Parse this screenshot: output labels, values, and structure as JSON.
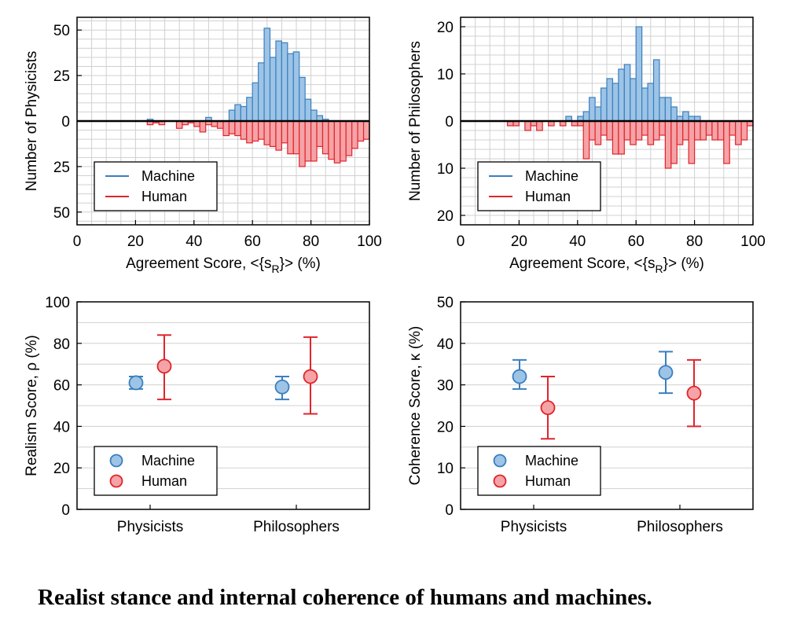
{
  "caption": "Realist stance and internal coherence of humans and machines.",
  "colors": {
    "machine_fill": "#9dc4e6",
    "machine_stroke": "#3a7fbf",
    "human_fill": "#f5a3a6",
    "human_stroke": "#e0242c",
    "grid": "#d0d0d0",
    "axis": "#000000"
  },
  "chart_data": [
    {
      "id": "hist-physicists",
      "type": "bar",
      "subtype": "mirrored-histogram",
      "xlabel": "Agreement Score, <{s_R}> (%)",
      "xlabel_main": "Agreement Score, <{s",
      "xlabel_sub": "R",
      "xlabel_end": "}> (%)",
      "ylabel": "Number of Physicists",
      "xlim": [
        0,
        100
      ],
      "xticks": [
        "0",
        "20",
        "40",
        "60",
        "80",
        "100"
      ],
      "ylim": [
        -57,
        57
      ],
      "ytick_labels": [
        "50",
        "25",
        "0",
        "25",
        "50"
      ],
      "bin_width": 2,
      "bins_start": [
        24,
        26,
        28,
        30,
        32,
        34,
        36,
        38,
        40,
        42,
        44,
        46,
        48,
        50,
        52,
        54,
        56,
        58,
        60,
        62,
        64,
        66,
        68,
        70,
        72,
        74,
        76,
        78,
        80,
        82,
        84,
        86,
        88,
        90,
        92,
        94,
        96,
        98
      ],
      "series": [
        {
          "name": "Machine",
          "direction": "up",
          "values": [
            1,
            0,
            0,
            0,
            0,
            0,
            0,
            0,
            0,
            0,
            2,
            0,
            0,
            0,
            6,
            9,
            8,
            13,
            21,
            32,
            51,
            35,
            44,
            43,
            37,
            38,
            24,
            12,
            6,
            3,
            1,
            0,
            0,
            0,
            0,
            0,
            0,
            0
          ]
        },
        {
          "name": "Human",
          "direction": "down",
          "values": [
            2,
            1,
            2,
            0,
            0,
            4,
            2,
            1,
            3,
            6,
            2,
            3,
            4,
            8,
            7,
            8,
            10,
            12,
            11,
            10,
            13,
            14,
            16,
            12,
            18,
            18,
            25,
            22,
            22,
            14,
            18,
            21,
            23,
            22,
            19,
            15,
            11,
            10
          ]
        }
      ],
      "legend": [
        "Machine",
        "Human"
      ],
      "legend_position": "bottom-left"
    },
    {
      "id": "hist-philosophers",
      "type": "bar",
      "subtype": "mirrored-histogram",
      "xlabel": "Agreement Score, <{s_R}> (%)",
      "xlabel_main": "Agreement Score, <{s",
      "xlabel_sub": "R",
      "xlabel_end": "}> (%)",
      "ylabel": "Number of Philosophers",
      "xlim": [
        0,
        100
      ],
      "xticks": [
        "0",
        "20",
        "40",
        "60",
        "80",
        "100"
      ],
      "ylim": [
        -22,
        22
      ],
      "ytick_labels": [
        "20",
        "10",
        "0",
        "10",
        "20"
      ],
      "bin_width": 2,
      "bins_start": [
        16,
        18,
        20,
        22,
        24,
        26,
        28,
        30,
        32,
        34,
        36,
        38,
        40,
        42,
        44,
        46,
        48,
        50,
        52,
        54,
        56,
        58,
        60,
        62,
        64,
        66,
        68,
        70,
        72,
        74,
        76,
        78,
        80,
        82,
        84,
        86,
        88,
        90,
        92,
        94,
        96,
        98
      ],
      "series": [
        {
          "name": "Machine",
          "direction": "up",
          "values": [
            0,
            0,
            0,
            0,
            0,
            0,
            0,
            0,
            0,
            0,
            1,
            0,
            1,
            2,
            5,
            3,
            7,
            9,
            8,
            11,
            12,
            9,
            20,
            7,
            8,
            13,
            5,
            5,
            3,
            1,
            2,
            1,
            1,
            0,
            0,
            0,
            0,
            0,
            0,
            0,
            0,
            0
          ]
        },
        {
          "name": "Human",
          "direction": "down",
          "values": [
            1,
            1,
            0,
            2,
            1,
            2,
            0,
            1,
            0,
            1,
            0,
            1,
            1,
            8,
            4,
            5,
            3,
            4,
            7,
            7,
            4,
            5,
            4,
            3,
            5,
            4,
            3,
            10,
            9,
            5,
            4,
            9,
            4,
            4,
            3,
            4,
            4,
            9,
            3,
            5,
            4,
            1
          ]
        }
      ],
      "legend": [
        "Machine",
        "Human"
      ],
      "legend_position": "bottom-left"
    },
    {
      "id": "realism",
      "type": "scatter",
      "subtype": "errorbar",
      "ylabel": "Realism Score, ρ (%)",
      "categories": [
        "Physicists",
        "Philosophers"
      ],
      "ylim": [
        0,
        100
      ],
      "yticks": [
        "0",
        "20",
        "40",
        "60",
        "80",
        "100"
      ],
      "series": [
        {
          "name": "Machine",
          "values": [
            61,
            59
          ],
          "lower": [
            58,
            53
          ],
          "upper": [
            64,
            64
          ]
        },
        {
          "name": "Human",
          "values": [
            69,
            64
          ],
          "lower": [
            53,
            46
          ],
          "upper": [
            84,
            83
          ]
        }
      ],
      "legend": [
        "Machine",
        "Human"
      ],
      "legend_position": "bottom-left"
    },
    {
      "id": "coherence",
      "type": "scatter",
      "subtype": "errorbar",
      "ylabel": "Coherence Score, κ (%)",
      "categories": [
        "Physicists",
        "Philosophers"
      ],
      "ylim": [
        0,
        50
      ],
      "yticks": [
        "0",
        "10",
        "20",
        "30",
        "40",
        "50"
      ],
      "series": [
        {
          "name": "Machine",
          "values": [
            32,
            33
          ],
          "lower": [
            29,
            28
          ],
          "upper": [
            36,
            38
          ]
        },
        {
          "name": "Human",
          "values": [
            24.5,
            28
          ],
          "lower": [
            17,
            20
          ],
          "upper": [
            32,
            36
          ]
        }
      ],
      "legend": [
        "Machine",
        "Human"
      ],
      "legend_position": "bottom-left"
    }
  ]
}
